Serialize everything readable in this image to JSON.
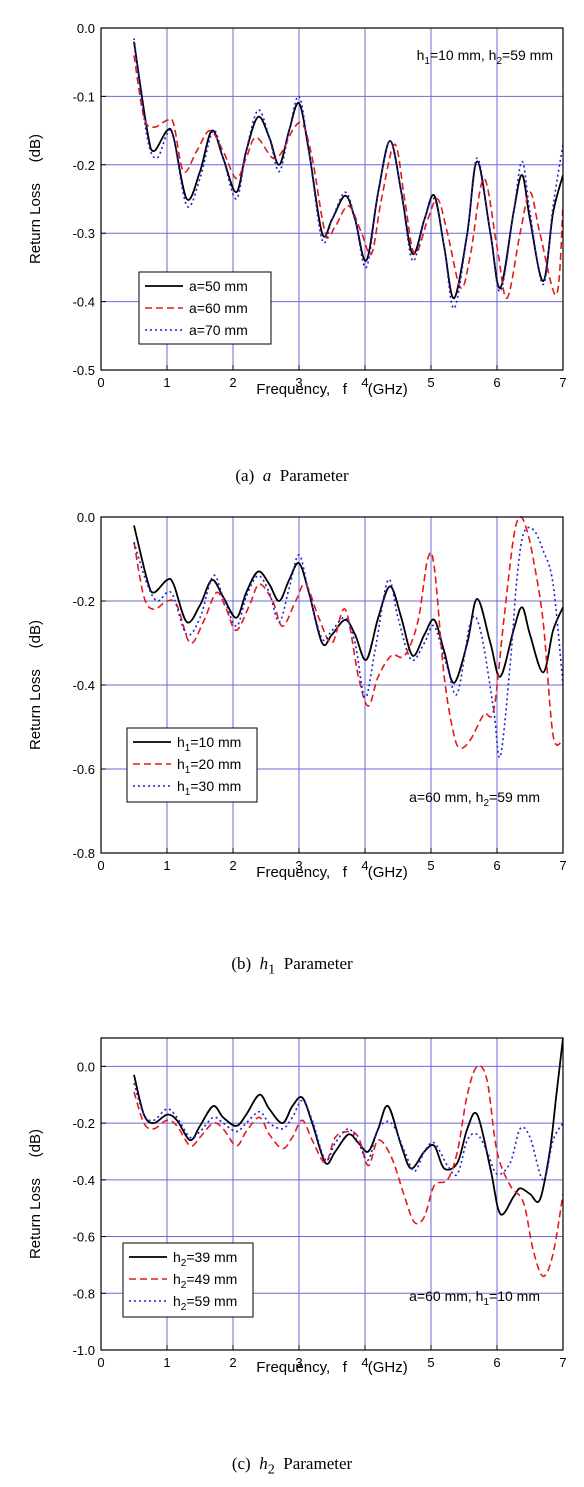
{
  "chart_data": [
    {
      "type": "line",
      "caption": {
        "prefix": "(a)",
        "var": "a",
        "sub": "",
        "suffix": "Parameter"
      },
      "xlabel": "Frequency,   f     (GHz)",
      "ylabel": "Return Loss     (dB)",
      "xlim": [
        0,
        7
      ],
      "ylim": [
        -0.5,
        0.0
      ],
      "xticks": [
        0,
        1,
        2,
        3,
        4,
        5,
        6,
        7
      ],
      "yticks": [
        -0.5,
        -0.4,
        -0.3,
        -0.2,
        -0.1,
        0.0
      ],
      "ytick_labels": [
        "-0.5",
        "-0.4",
        "-0.3",
        "-0.2",
        "-0.1",
        "0.0"
      ],
      "grid": true,
      "annotation": {
        "parts": [
          "h",
          "1",
          "=10 mm, h",
          "2",
          "=59 mm"
        ],
        "position": "top-right"
      },
      "legend_position": "bottom-left",
      "series": [
        {
          "name": "a=50 mm",
          "name_parts": [
            "a=50 mm"
          ],
          "color": "#000000",
          "style": "solid",
          "x": [
            0.5,
            0.7,
            0.8,
            1.0,
            1.1,
            1.3,
            1.5,
            1.68,
            1.85,
            2.05,
            2.2,
            2.38,
            2.55,
            2.7,
            2.85,
            3.0,
            3.15,
            3.35,
            3.5,
            3.7,
            3.85,
            4.02,
            4.2,
            4.38,
            4.55,
            4.72,
            4.9,
            5.05,
            5.2,
            5.35,
            5.55,
            5.7,
            5.9,
            6.05,
            6.25,
            6.38,
            6.5,
            6.7,
            6.85,
            7.0
          ],
          "y": [
            -0.02,
            -0.15,
            -0.18,
            -0.15,
            -0.16,
            -0.25,
            -0.21,
            -0.15,
            -0.19,
            -0.24,
            -0.18,
            -0.13,
            -0.16,
            -0.2,
            -0.15,
            -0.11,
            -0.18,
            -0.3,
            -0.28,
            -0.245,
            -0.28,
            -0.34,
            -0.24,
            -0.165,
            -0.24,
            -0.33,
            -0.28,
            -0.245,
            -0.32,
            -0.395,
            -0.3,
            -0.195,
            -0.3,
            -0.38,
            -0.27,
            -0.215,
            -0.28,
            -0.37,
            -0.27,
            -0.215
          ]
        },
        {
          "name": "a=60 mm",
          "name_parts": [
            "a=60 mm"
          ],
          "color": "#e41a1c",
          "style": "dashed",
          "x": [
            0.5,
            0.65,
            0.8,
            1.0,
            1.1,
            1.25,
            1.45,
            1.65,
            1.85,
            2.05,
            2.2,
            2.35,
            2.6,
            2.75,
            2.9,
            3.05,
            3.2,
            3.4,
            3.55,
            3.75,
            3.95,
            4.1,
            4.25,
            4.45,
            4.6,
            4.75,
            4.95,
            5.1,
            5.25,
            5.45,
            5.6,
            5.8,
            6.0,
            6.15,
            6.35,
            6.5,
            6.65,
            6.9,
            7.0
          ],
          "y": [
            -0.04,
            -0.13,
            -0.145,
            -0.135,
            -0.14,
            -0.21,
            -0.18,
            -0.15,
            -0.18,
            -0.22,
            -0.19,
            -0.16,
            -0.19,
            -0.18,
            -0.15,
            -0.14,
            -0.19,
            -0.3,
            -0.29,
            -0.26,
            -0.3,
            -0.33,
            -0.25,
            -0.17,
            -0.25,
            -0.33,
            -0.28,
            -0.25,
            -0.3,
            -0.38,
            -0.33,
            -0.22,
            -0.32,
            -0.395,
            -0.3,
            -0.24,
            -0.3,
            -0.39,
            -0.26
          ]
        },
        {
          "name": "a=70 mm",
          "name_parts": [
            "a=70 mm"
          ],
          "color": "#1f1fcf",
          "style": "dotted",
          "x": [
            0.5,
            0.7,
            0.85,
            1.0,
            1.1,
            1.3,
            1.5,
            1.7,
            1.85,
            2.05,
            2.2,
            2.38,
            2.55,
            2.7,
            2.85,
            3.0,
            3.15,
            3.35,
            3.5,
            3.7,
            3.85,
            4.02,
            4.2,
            4.38,
            4.55,
            4.72,
            4.9,
            5.05,
            5.2,
            5.35,
            5.55,
            5.7,
            5.9,
            6.05,
            6.25,
            6.38,
            6.5,
            6.7,
            6.85,
            7.0
          ],
          "y": [
            -0.015,
            -0.16,
            -0.19,
            -0.155,
            -0.16,
            -0.26,
            -0.22,
            -0.15,
            -0.19,
            -0.25,
            -0.18,
            -0.12,
            -0.16,
            -0.21,
            -0.15,
            -0.1,
            -0.18,
            -0.31,
            -0.28,
            -0.24,
            -0.28,
            -0.35,
            -0.24,
            -0.165,
            -0.24,
            -0.34,
            -0.28,
            -0.25,
            -0.32,
            -0.41,
            -0.3,
            -0.19,
            -0.3,
            -0.385,
            -0.27,
            -0.195,
            -0.27,
            -0.375,
            -0.26,
            -0.17
          ]
        }
      ]
    },
    {
      "type": "line",
      "caption": {
        "prefix": "(b)",
        "var": "h",
        "sub": "1",
        "suffix": "Parameter"
      },
      "xlabel": "Frequency,   f     (GHz)",
      "ylabel": "Return Loss     (dB)",
      "xlim": [
        0,
        7
      ],
      "ylim": [
        -0.8,
        0.0
      ],
      "xticks": [
        0,
        1,
        2,
        3,
        4,
        5,
        6,
        7
      ],
      "yticks": [
        -0.8,
        -0.6,
        -0.4,
        -0.2,
        0.0
      ],
      "ytick_labels": [
        "-0.8",
        "-0.6",
        "-0.4",
        "-0.2",
        "0.0"
      ],
      "grid": true,
      "annotation": {
        "parts": [
          "a=60 mm, h",
          "2",
          "=59 mm"
        ],
        "position": "bottom-right"
      },
      "legend_position": "bottom-left",
      "series": [
        {
          "name": "h1=10 mm",
          "name_parts": [
            "h",
            "1",
            "=10 mm"
          ],
          "color": "#000000",
          "style": "solid",
          "x": [
            0.5,
            0.7,
            0.8,
            1.0,
            1.1,
            1.3,
            1.5,
            1.68,
            1.85,
            2.05,
            2.2,
            2.38,
            2.55,
            2.7,
            2.85,
            3.0,
            3.15,
            3.35,
            3.5,
            3.7,
            3.85,
            4.02,
            4.2,
            4.38,
            4.55,
            4.72,
            4.9,
            5.05,
            5.2,
            5.35,
            5.55,
            5.7,
            5.9,
            6.05,
            6.25,
            6.38,
            6.5,
            6.7,
            6.85,
            7.0
          ],
          "y": [
            -0.02,
            -0.15,
            -0.18,
            -0.15,
            -0.16,
            -0.25,
            -0.21,
            -0.15,
            -0.19,
            -0.24,
            -0.18,
            -0.13,
            -0.16,
            -0.2,
            -0.15,
            -0.11,
            -0.18,
            -0.3,
            -0.28,
            -0.245,
            -0.28,
            -0.34,
            -0.24,
            -0.165,
            -0.24,
            -0.33,
            -0.28,
            -0.245,
            -0.32,
            -0.395,
            -0.3,
            -0.195,
            -0.3,
            -0.38,
            -0.27,
            -0.215,
            -0.28,
            -0.37,
            -0.27,
            -0.215
          ]
        },
        {
          "name": "h1=20 mm",
          "name_parts": [
            "h",
            "1",
            "=20 mm"
          ],
          "color": "#e41a1c",
          "style": "dashed",
          "x": [
            0.5,
            0.65,
            0.8,
            1.0,
            1.15,
            1.35,
            1.55,
            1.75,
            1.9,
            2.05,
            2.25,
            2.4,
            2.6,
            2.75,
            2.95,
            3.1,
            3.3,
            3.5,
            3.7,
            3.9,
            4.05,
            4.2,
            4.4,
            4.6,
            4.8,
            4.95,
            5.05,
            5.2,
            5.35,
            5.45,
            5.6,
            5.8,
            5.95,
            6.1,
            6.25,
            6.35,
            6.45,
            6.55,
            6.7,
            6.85,
            7.0
          ],
          "y": [
            -0.06,
            -0.19,
            -0.22,
            -0.2,
            -0.21,
            -0.3,
            -0.25,
            -0.18,
            -0.22,
            -0.27,
            -0.21,
            -0.16,
            -0.2,
            -0.26,
            -0.2,
            -0.16,
            -0.24,
            -0.3,
            -0.22,
            -0.38,
            -0.45,
            -0.38,
            -0.33,
            -0.33,
            -0.25,
            -0.1,
            -0.12,
            -0.38,
            -0.52,
            -0.55,
            -0.53,
            -0.47,
            -0.46,
            -0.25,
            -0.05,
            0.0,
            -0.03,
            -0.1,
            -0.25,
            -0.52,
            -0.53
          ]
        },
        {
          "name": "h1=30 mm",
          "name_parts": [
            "h",
            "1",
            "=30 mm"
          ],
          "color": "#1f1fcf",
          "style": "dotted",
          "x": [
            0.5,
            0.7,
            0.85,
            1.0,
            1.1,
            1.3,
            1.5,
            1.7,
            1.85,
            2.05,
            2.2,
            2.38,
            2.55,
            2.7,
            2.85,
            3.0,
            3.15,
            3.35,
            3.5,
            3.7,
            3.85,
            4.0,
            4.15,
            4.35,
            4.5,
            4.7,
            4.9,
            5.05,
            5.25,
            5.4,
            5.6,
            5.75,
            5.95,
            6.05,
            6.2,
            6.3,
            6.4,
            6.55,
            6.7,
            6.85,
            7.0
          ],
          "y": [
            -0.06,
            -0.16,
            -0.2,
            -0.18,
            -0.19,
            -0.28,
            -0.24,
            -0.14,
            -0.19,
            -0.26,
            -0.19,
            -0.14,
            -0.18,
            -0.25,
            -0.17,
            -0.09,
            -0.18,
            -0.29,
            -0.27,
            -0.24,
            -0.3,
            -0.43,
            -0.32,
            -0.15,
            -0.24,
            -0.34,
            -0.3,
            -0.26,
            -0.36,
            -0.42,
            -0.25,
            -0.27,
            -0.46,
            -0.57,
            -0.35,
            -0.15,
            -0.04,
            -0.03,
            -0.08,
            -0.16,
            -0.4
          ]
        }
      ]
    },
    {
      "type": "line",
      "caption": {
        "prefix": "(c)",
        "var": "h",
        "sub": "2",
        "suffix": "Parameter"
      },
      "xlabel": "Frequency,   f     (GHz)",
      "ylabel": "Return Loss     (dB)",
      "xlim": [
        0,
        7
      ],
      "ylim": [
        -1.0,
        0.1
      ],
      "xticks": [
        0,
        1,
        2,
        3,
        4,
        5,
        6,
        7
      ],
      "yticks": [
        -1.0,
        -0.8,
        -0.6,
        -0.4,
        -0.2,
        0.0
      ],
      "ytick_labels": [
        "-1.0",
        "-0.8",
        "-0.6",
        "-0.4",
        "-0.2",
        "0.0"
      ],
      "grid": true,
      "annotation": {
        "parts": [
          "a=60 mm, h",
          "1",
          "=10 mm"
        ],
        "position": "bottom-right"
      },
      "legend_position": "bottom-left",
      "series": [
        {
          "name": "h2=39 mm",
          "name_parts": [
            "h",
            "2",
            "=39 mm"
          ],
          "color": "#000000",
          "style": "solid",
          "x": [
            0.5,
            0.65,
            0.8,
            1.0,
            1.15,
            1.35,
            1.5,
            1.7,
            1.85,
            2.05,
            2.2,
            2.4,
            2.55,
            2.75,
            2.9,
            3.05,
            3.2,
            3.4,
            3.55,
            3.75,
            3.9,
            4.05,
            4.2,
            4.35,
            4.55,
            4.7,
            4.9,
            5.05,
            5.2,
            5.4,
            5.55,
            5.7,
            5.9,
            6.05,
            6.25,
            6.35,
            6.5,
            6.65,
            6.8,
            6.9,
            7.0
          ],
          "y": [
            -0.03,
            -0.17,
            -0.2,
            -0.17,
            -0.19,
            -0.26,
            -0.21,
            -0.14,
            -0.18,
            -0.21,
            -0.17,
            -0.1,
            -0.15,
            -0.2,
            -0.14,
            -0.11,
            -0.2,
            -0.34,
            -0.3,
            -0.24,
            -0.27,
            -0.3,
            -0.22,
            -0.14,
            -0.28,
            -0.36,
            -0.3,
            -0.28,
            -0.36,
            -0.34,
            -0.22,
            -0.17,
            -0.36,
            -0.52,
            -0.46,
            -0.43,
            -0.45,
            -0.47,
            -0.3,
            -0.1,
            0.1
          ]
        },
        {
          "name": "h2=49 mm",
          "name_parts": [
            "h",
            "2",
            "=49 mm"
          ],
          "color": "#e41a1c",
          "style": "dashed",
          "x": [
            0.5,
            0.65,
            0.8,
            1.0,
            1.15,
            1.35,
            1.5,
            1.7,
            1.85,
            2.05,
            2.2,
            2.4,
            2.55,
            2.75,
            2.9,
            3.05,
            3.2,
            3.4,
            3.55,
            3.75,
            3.9,
            4.05,
            4.2,
            4.4,
            4.6,
            4.75,
            4.9,
            5.05,
            5.25,
            5.4,
            5.55,
            5.7,
            5.85,
            6.0,
            6.2,
            6.4,
            6.55,
            6.7,
            6.85,
            7.0
          ],
          "y": [
            -0.09,
            -0.2,
            -0.22,
            -0.19,
            -0.21,
            -0.28,
            -0.25,
            -0.2,
            -0.22,
            -0.28,
            -0.23,
            -0.18,
            -0.24,
            -0.29,
            -0.25,
            -0.19,
            -0.26,
            -0.34,
            -0.25,
            -0.23,
            -0.25,
            -0.35,
            -0.26,
            -0.32,
            -0.46,
            -0.55,
            -0.53,
            -0.42,
            -0.4,
            -0.3,
            -0.1,
            0.0,
            -0.05,
            -0.3,
            -0.42,
            -0.48,
            -0.65,
            -0.74,
            -0.66,
            -0.45
          ]
        },
        {
          "name": "h2=59 mm",
          "name_parts": [
            "h",
            "2",
            "=59 mm"
          ],
          "color": "#1f1fcf",
          "style": "dotted",
          "x": [
            0.5,
            0.65,
            0.8,
            1.0,
            1.15,
            1.35,
            1.5,
            1.7,
            1.85,
            2.05,
            2.2,
            2.4,
            2.55,
            2.75,
            2.9,
            3.05,
            3.2,
            3.4,
            3.55,
            3.75,
            3.9,
            4.05,
            4.2,
            4.4,
            4.6,
            4.75,
            4.9,
            5.05,
            5.25,
            5.4,
            5.55,
            5.7,
            5.85,
            6.0,
            6.2,
            6.35,
            6.5,
            6.7,
            6.85,
            7.0
          ],
          "y": [
            -0.06,
            -0.17,
            -0.19,
            -0.15,
            -0.18,
            -0.25,
            -0.23,
            -0.18,
            -0.2,
            -0.23,
            -0.2,
            -0.16,
            -0.2,
            -0.22,
            -0.18,
            -0.12,
            -0.19,
            -0.33,
            -0.27,
            -0.22,
            -0.27,
            -0.33,
            -0.22,
            -0.2,
            -0.3,
            -0.37,
            -0.3,
            -0.27,
            -0.35,
            -0.38,
            -0.26,
            -0.24,
            -0.3,
            -0.38,
            -0.34,
            -0.22,
            -0.25,
            -0.4,
            -0.26,
            -0.2
          ]
        }
      ]
    }
  ]
}
